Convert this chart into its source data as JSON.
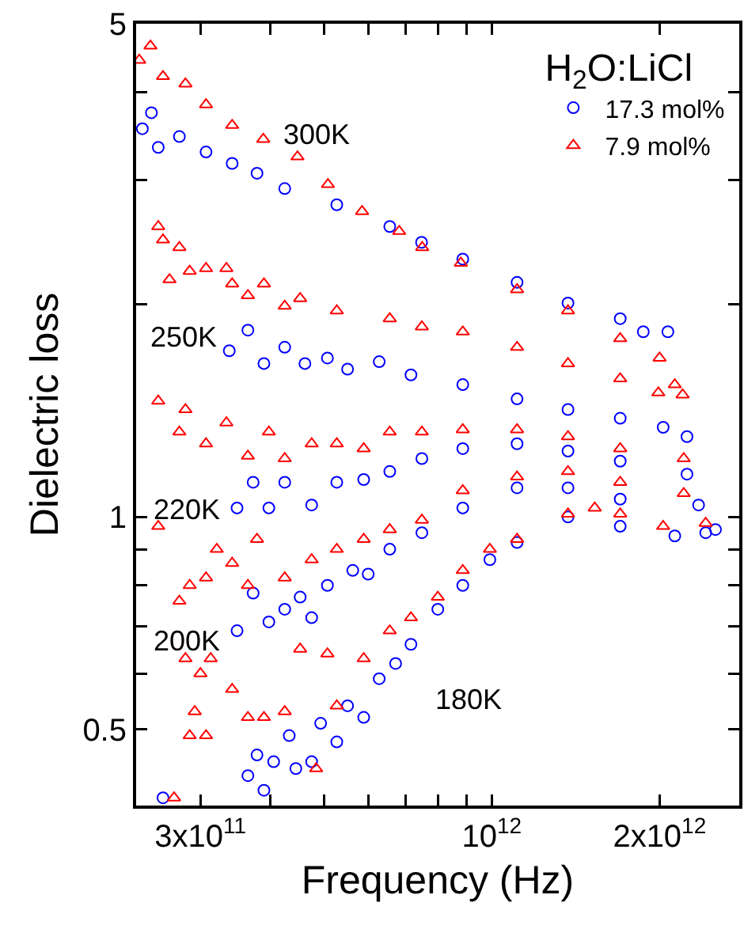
{
  "chart_data": {
    "type": "scatter",
    "xlabel": "Frequency (Hz)",
    "ylabel": "Dielectric loss",
    "legend_title": "H$_{2}$O:LiCl",
    "legend": "top right",
    "grid": false,
    "log": "xy",
    "xlim": [
      230000000000.0,
      2780000000000.0
    ],
    "ylim": [
      0.39,
      5
    ],
    "xticks": [
      {
        "value": 300000000000.0,
        "label": "3x10$^{11}$"
      },
      {
        "value": 400000000000.0,
        "label": null
      },
      {
        "value": 500000000000.0,
        "label": null
      },
      {
        "value": 600000000000.0,
        "label": null
      },
      {
        "value": 700000000000.0,
        "label": null
      },
      {
        "value": 800000000000.0,
        "label": null
      },
      {
        "value": 900000000000.0,
        "label": null
      },
      {
        "value": 1000000000000.0,
        "label": "10$^{12}$"
      },
      {
        "value": 2000000000000.0,
        "label": "2x10$^{12}$"
      }
    ],
    "yticks": [
      0.5,
      {
        "value": 0.6,
        "label": null
      },
      {
        "value": 0.7,
        "label": null
      },
      {
        "value": 0.8,
        "label": null
      },
      {
        "value": 0.9,
        "label": null
      },
      1,
      {
        "value": 2,
        "label": null
      },
      {
        "value": 3,
        "label": null
      },
      {
        "value": 4,
        "label": null
      },
      5
    ],
    "annotations": [
      "300K",
      "250K",
      "220K",
      "200K",
      "180K"
    ],
    "series": [
      {
        "name": "17.3 mol%",
        "color": "#0000ff",
        "marker": "circle",
        "x": [
          236000000000.0,
          245000000000.0,
          252000000000.0,
          275000000000.0,
          307000000000.0,
          342000000000.0,
          379000000000.0,
          425000000000.0,
          527000000000.0,
          656000000000.0,
          748000000000.0,
          887000000000.0,
          1110000000000.0,
          1370000000000.0,
          1700000000000.0,
          1870000000000.0,
          2070000000000.0
        ],
        "values": [
          3.55,
          3.74,
          3.34,
          3.46,
          3.29,
          3.17,
          3.07,
          2.92,
          2.77,
          2.58,
          2.45,
          2.32,
          2.15,
          2.01,
          1.91,
          1.83,
          1.83
        ]
      },
      {
        "name": "7.9 mol%",
        "color": "#ff0000",
        "marker": "triangle",
        "x": [
          233000000000.0,
          244000000000.0,
          257000000000.0,
          282000000000.0,
          307000000000.0,
          342000000000.0,
          389000000000.0,
          448000000000.0,
          508000000000.0,
          585000000000.0,
          682000000000.0,
          750000000000.0,
          880000000000.0,
          1110000000000.0,
          1370000000000.0,
          1700000000000.0,
          2000000000000.0,
          2130000000000.0
        ],
        "values": [
          4.44,
          4.65,
          4.21,
          4.11,
          3.84,
          3.59,
          3.43,
          3.24,
          2.96,
          2.71,
          2.54,
          2.41,
          2.29,
          2.1,
          1.96,
          1.79,
          1.68,
          1.54
        ]
      },
      {
        "color": "#0000ff",
        "marker": "circle",
        "x": [
          338000000000.0,
          365000000000.0,
          390000000000.0,
          425000000000.0,
          462000000000.0,
          507000000000.0,
          551000000000.0,
          628000000000.0,
          716000000000.0,
          887000000000.0,
          1110000000000.0,
          1370000000000.0,
          1700000000000.0,
          2030000000000.0,
          2240000000000.0
        ],
        "values": [
          1.72,
          1.84,
          1.65,
          1.74,
          1.65,
          1.68,
          1.62,
          1.66,
          1.59,
          1.54,
          1.47,
          1.42,
          1.38,
          1.34,
          1.3
        ]
      },
      {
        "color": "#ff0000",
        "marker": "triangle",
        "x": [
          252000000000.0,
          257000000000.0,
          264000000000.0,
          275000000000.0,
          287000000000.0,
          307000000000.0,
          334000000000.0,
          342000000000.0,
          365000000000.0,
          390000000000.0,
          425000000000.0,
          453000000000.0,
          527000000000.0,
          656000000000.0,
          749000000000.0,
          887000000000.0,
          1110000000000.0,
          1370000000000.0,
          1700000000000.0,
          1990000000000.0,
          2200000000000.0
        ],
        "values": [
          2.58,
          2.47,
          2.17,
          2.41,
          2.23,
          2.25,
          2.25,
          2.14,
          2.06,
          2.14,
          1.99,
          2.04,
          1.96,
          1.91,
          1.86,
          1.83,
          1.74,
          1.65,
          1.57,
          1.5,
          1.49
        ]
      },
      {
        "color": "#0000ff",
        "marker": "circle",
        "x": [
          349000000000.0,
          373000000000.0,
          398000000000.0,
          425000000000.0,
          475000000000.0,
          527000000000.0,
          589000000000.0,
          656000000000.0,
          749000000000.0,
          887000000000.0,
          1110000000000.0,
          1370000000000.0,
          1700000000000.0,
          2240000000000.0
        ],
        "values": [
          1.03,
          1.12,
          1.03,
          1.12,
          1.04,
          1.12,
          1.13,
          1.16,
          1.21,
          1.25,
          1.27,
          1.24,
          1.2,
          1.15
        ]
      },
      {
        "color": "#ff0000",
        "marker": "triangle",
        "x": [
          252000000000.0,
          275000000000.0,
          282000000000.0,
          307000000000.0,
          334000000000.0,
          365000000000.0,
          398000000000.0,
          425000000000.0,
          475000000000.0,
          527000000000.0,
          589000000000.0,
          656000000000.0,
          749000000000.0,
          887000000000.0,
          1110000000000.0,
          1370000000000.0,
          1700000000000.0,
          2210000000000.0
        ],
        "values": [
          1.46,
          1.32,
          1.42,
          1.27,
          1.36,
          1.22,
          1.32,
          1.21,
          1.27,
          1.27,
          1.25,
          1.32,
          1.32,
          1.33,
          1.33,
          1.3,
          1.25,
          1.21
        ]
      },
      {
        "color": "#0000ff",
        "marker": "circle",
        "x": [
          349000000000.0,
          373000000000.0,
          398000000000.0,
          425000000000.0,
          453000000000.0,
          475000000000.0,
          507000000000.0,
          563000000000.0,
          600000000000.0,
          656000000000.0,
          749000000000.0,
          887000000000.0,
          1110000000000.0,
          1370000000000.0,
          1700000000000.0,
          2350000000000.0
        ],
        "values": [
          0.69,
          0.78,
          0.71,
          0.74,
          0.77,
          0.72,
          0.8,
          0.84,
          0.83,
          0.9,
          0.95,
          1.03,
          1.1,
          1.1,
          1.06,
          1.04
        ]
      },
      {
        "color": "#ff0000",
        "marker": "triangle",
        "x": [
          252000000000.0,
          275000000000.0,
          287000000000.0,
          307000000000.0,
          321000000000.0,
          342000000000.0,
          365000000000.0,
          379000000000.0,
          425000000000.0,
          475000000000.0,
          527000000000.0,
          589000000000.0,
          656000000000.0,
          749000000000.0,
          887000000000.0,
          1110000000000.0,
          1370000000000.0,
          1700000000000.0,
          2210000000000.0
        ],
        "values": [
          0.97,
          0.76,
          0.8,
          0.82,
          0.9,
          0.86,
          0.8,
          0.93,
          0.82,
          0.87,
          0.9,
          0.93,
          0.96,
          0.99,
          1.09,
          1.14,
          1.16,
          1.12,
          1.08
        ]
      },
      {
        "color": "#0000ff",
        "marker": "circle",
        "x": [
          257000000000.0,
          365000000000.0,
          379000000000.0,
          390000000000.0,
          406000000000.0,
          433000000000.0,
          445000000000.0,
          475000000000.0,
          493000000000.0,
          527000000000.0,
          551000000000.0,
          589000000000.0,
          628000000000.0,
          672000000000.0,
          716000000000.0,
          800000000000.0,
          887000000000.0,
          992000000000.0,
          1110000000000.0,
          1370000000000.0,
          1700000000000.0,
          2130000000000.0,
          2420000000000.0,
          2520000000000.0
        ],
        "values": [
          0.4,
          0.43,
          0.46,
          0.41,
          0.45,
          0.49,
          0.44,
          0.45,
          0.51,
          0.48,
          0.54,
          0.52,
          0.59,
          0.62,
          0.66,
          0.74,
          0.8,
          0.87,
          0.92,
          1.0,
          0.97,
          0.94,
          0.95,
          0.96
        ]
      },
      {
        "color": "#ff0000",
        "marker": "triangle",
        "x": [
          269000000000.0,
          282000000000.0,
          287000000000.0,
          293000000000.0,
          300000000000.0,
          307000000000.0,
          313000000000.0,
          342000000000.0,
          365000000000.0,
          390000000000.0,
          425000000000.0,
          453000000000.0,
          484000000000.0,
          507000000000.0,
          527000000000.0,
          589000000000.0,
          656000000000.0,
          716000000000.0,
          800000000000.0,
          887000000000.0,
          992000000000.0,
          1110000000000.0,
          1370000000000.0,
          1530000000000.0,
          1700000000000.0,
          2030000000000.0,
          2420000000000.0
        ],
        "values": [
          0.4,
          0.63,
          0.49,
          0.53,
          0.6,
          0.49,
          0.63,
          0.57,
          0.52,
          0.52,
          0.53,
          0.65,
          0.44,
          0.64,
          0.54,
          0.63,
          0.69,
          0.72,
          0.77,
          0.84,
          0.9,
          0.93,
          1.01,
          1.03,
          1.01,
          0.97,
          0.98
        ]
      }
    ]
  }
}
